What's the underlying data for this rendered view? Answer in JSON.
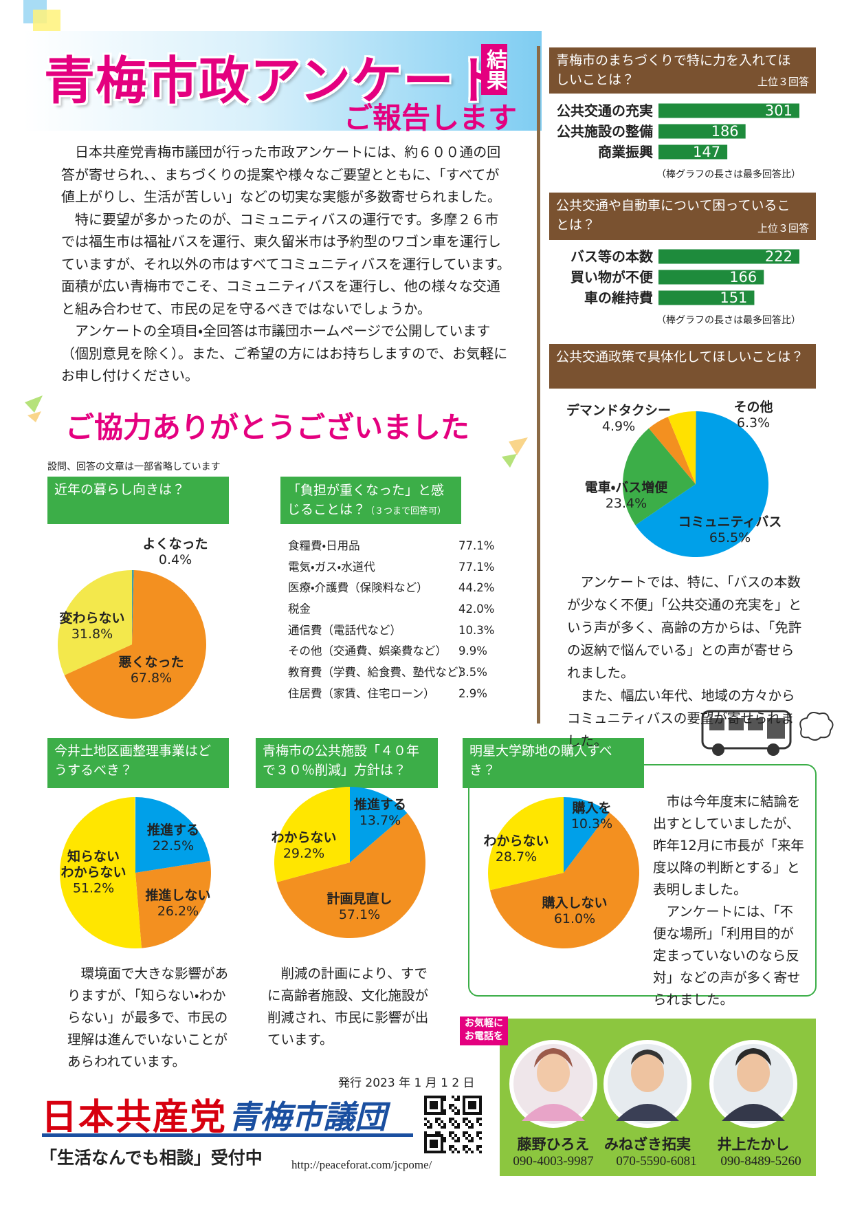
{
  "header": {
    "title": "青梅市政アンケート",
    "badge": "結果",
    "subtitle": "ご報告します"
  },
  "intro": [
    "日本共産党青梅市議団が行った市政アンケートには、約６００通の回答が寄せられ、、まちづくりの提案や様々なご要望とともに、「すべてが値上がりし、生活が苦しい」などの切実な実態が多数寄せられました。",
    "特に要望が多かったのが、コミュニティバスの運行です。多摩２６市では福生市は福祉バスを運行、東久留米市は予約型のワゴン車を運行していますが、それ以外の市はすべてコミュニティバスを運行しています。面積が広い青梅市でこそ、コミュニティバスを運行し、他の様々な交通と組み合わせて、市民の足を守るべきではないでしょうか。",
    "アンケートの全項目・全回答は市議団ホームページで公開しています（個別意見を除く）。また、ご希望の方にはお持ちしますので、お気軽にお申し付けください。"
  ],
  "thanks": "ご協力ありがとうございました",
  "note": "設問、回答の文章は一部省略しています",
  "chart_data": [
    {
      "type": "bar",
      "title": "青梅市のまちづくりで特に力を入れてほしいことは？",
      "subtitle": "上位３回答",
      "categories": [
        "公共交通の充実",
        "公共施設の整備",
        "商業振興"
      ],
      "values": [
        301,
        186,
        147
      ],
      "color": "#1e8b3c",
      "annotations": [
        "（棒グラフの長さは最多回答比）"
      ]
    },
    {
      "type": "bar",
      "title": "公共交通や自動車について困っていることは？",
      "subtitle": "上位３回答",
      "categories": [
        "バス等の本数",
        "買い物が不便",
        "車の維持費"
      ],
      "values": [
        222,
        166,
        151
      ],
      "color": "#1e8b3c",
      "annotations": [
        "（棒グラフの長さは最多回答比）"
      ]
    },
    {
      "type": "pie",
      "title": "公共交通政策で具体化してほしいことは？",
      "categories": [
        "コミュニティバス",
        "電車・バス増便",
        "デマンドタクシー",
        "その他"
      ],
      "values": [
        65.5,
        23.4,
        4.9,
        6.3
      ],
      "value_labels": [
        "65.5%",
        "23.4%",
        "4.9%",
        "6.3%"
      ],
      "colors": [
        "#00a0e9",
        "#3cae48",
        "#f39020",
        "#ffe100"
      ],
      "annotations": [
        "アンケートでは、特に、「バスの本数が少なく不便」「公共交通の充実を」という声が多く、高齢の方からは、「免許の返納で悩んでいる」との声が寄せられました。",
        "また、幅広い年代、地域の方々からコミュニティバスの要望が寄せられました。"
      ]
    },
    {
      "type": "pie",
      "title": "近年の暮らし向きは？",
      "categories": [
        "よくなった",
        "悪くなった",
        "変わらない"
      ],
      "values": [
        0.4,
        67.8,
        31.8
      ],
      "value_labels": [
        "0.4%",
        "67.8%",
        "31.8%"
      ],
      "colors": [
        "#3a9fb0",
        "#f39020",
        "#f3e84c"
      ]
    },
    {
      "type": "pie",
      "title": "今井土地区画整理事業はどうするべき？",
      "categories": [
        "推進する",
        "推進しない",
        "知らない\nわからない"
      ],
      "values": [
        22.5,
        26.2,
        51.2
      ],
      "value_labels": [
        "22.5%",
        "26.2%",
        "51.2%"
      ],
      "colors": [
        "#00a0e9",
        "#f39020",
        "#ffe600"
      ],
      "annotations": [
        "環境面で大きな影響がありますが、「知らない・わからない」が最多で、市民の理解は進んでいないことがあらわれています。"
      ]
    },
    {
      "type": "pie",
      "title": "青梅市の公共施設「４０年で３０％削減」方針は？",
      "categories": [
        "推進する",
        "計画見直し",
        "わからない"
      ],
      "values": [
        13.7,
        57.1,
        29.2
      ],
      "value_labels": [
        "13.7%",
        "57.1%",
        "29.2%"
      ],
      "colors": [
        "#00a0e9",
        "#f39020",
        "#ffe600"
      ],
      "annotations": [
        "削減の計画により、すでに高齢者施設、文化施設が削減され、市民に影響が出ています。"
      ]
    },
    {
      "type": "pie",
      "title": "明星大学跡地の購入すべき？",
      "categories": [
        "購入を",
        "購入しない",
        "わからない"
      ],
      "values": [
        10.3,
        61.0,
        28.7
      ],
      "value_labels": [
        "10.3%",
        "61.0%",
        "28.7%"
      ],
      "colors": [
        "#00a0e9",
        "#f39020",
        "#ffe600"
      ],
      "annotations": [
        "市は今年度末に結論を出すとしていましたが、昨年12月に市長が「来年度以降の判断とする」と表明しました。",
        "アンケートには、「不便な場所」「利用目的が定まっていないのなら反対」などの声が多く寄せられました。"
      ]
    }
  ],
  "burden": {
    "title": "「負担が重くなった」と感じることは？",
    "title_note": "（３つまで回答可）",
    "rows": [
      [
        "食糧費・日用品",
        "77.1%"
      ],
      [
        "電気・ガス・水道代",
        "77.1%"
      ],
      [
        "医療・介護費（保険料など）",
        "44.2%"
      ],
      [
        "税金",
        "42.0%"
      ],
      [
        "通信費（電話代など）",
        "10.3%"
      ],
      [
        "その他（交通費、娯楽費など）",
        "9.9%"
      ],
      [
        "教育費（学費、給食費、塾代など）",
        "3.5%"
      ],
      [
        "住居費（家賃、住宅ローン）",
        "2.9%"
      ]
    ]
  },
  "footer": {
    "issued": "発行 2023 年 1 月 1 2 日",
    "party": "日本共産党",
    "group": "青梅市議団",
    "consult": "「生活なんでも相談」受付中",
    "url": "http://peaceforat.com/jcpome/",
    "call": "お気軽に\nお電話を",
    "members": [
      {
        "name": "藤野ひろえ",
        "phone": "090-4003-9987"
      },
      {
        "name": "みねざき拓実",
        "phone": "070-5590-6081"
      },
      {
        "name": "井上たかし",
        "phone": "090-8489-5260"
      }
    ]
  }
}
